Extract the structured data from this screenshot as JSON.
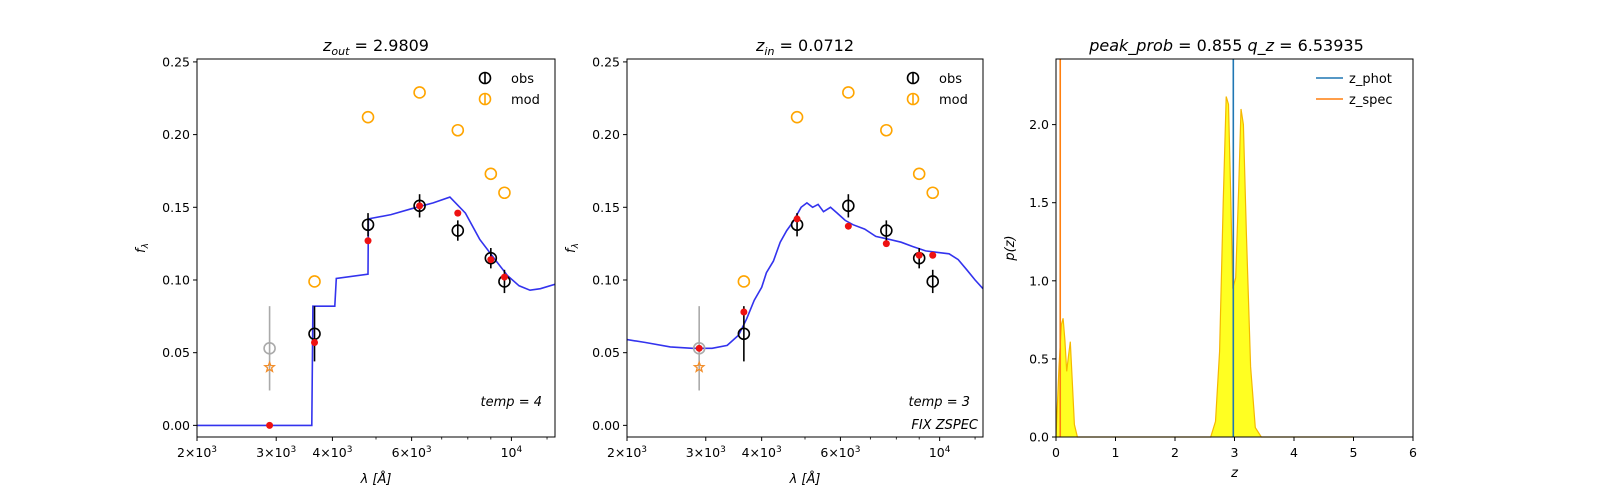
{
  "chart_data": [
    {
      "type": "scatter",
      "title_var": "z",
      "title_sub": "out",
      "title_value": "2.9809",
      "ylabel_var": "f",
      "ylabel_sub": "λ",
      "xlabel": "λ [Å]",
      "xscale": "log",
      "xlim": [
        2000,
        12500
      ],
      "ylim": [
        -0.008,
        0.252
      ],
      "xticks": [
        {
          "value": 2000,
          "base": "2×10",
          "exp": "3"
        },
        {
          "value": 3000,
          "base": "3×10",
          "exp": "3"
        },
        {
          "value": 4000,
          "base": "4×10",
          "exp": "3"
        },
        {
          "value": 6000,
          "base": "6×10",
          "exp": "3"
        },
        {
          "value": 10000,
          "base": "10",
          "exp": "4"
        }
      ],
      "yticks": [
        "0.00",
        "0.05",
        "0.10",
        "0.15",
        "0.20",
        "0.25"
      ],
      "legend": {
        "position": "top-right",
        "entries": [
          {
            "label": "obs",
            "color": "#000000"
          },
          {
            "label": "mod",
            "color": "#FFA500"
          }
        ]
      },
      "annotation": "temp = 4",
      "annotation2": "",
      "obs": [
        {
          "x": 2900,
          "y": 0.053,
          "err": 0.029,
          "color": "#AAAAAA"
        },
        {
          "x": 3650,
          "y": 0.063,
          "err": 0.019,
          "color": "#000000"
        },
        {
          "x": 4800,
          "y": 0.138,
          "err": 0.008,
          "color": "#000000"
        },
        {
          "x": 6250,
          "y": 0.151,
          "err": 0.008,
          "color": "#000000"
        },
        {
          "x": 7600,
          "y": 0.134,
          "err": 0.007,
          "color": "#000000"
        },
        {
          "x": 9000,
          "y": 0.115,
          "err": 0.007,
          "color": "#000000"
        },
        {
          "x": 9650,
          "y": 0.099,
          "err": 0.008,
          "color": "#000000"
        }
      ],
      "mod": [
        {
          "x": 3650,
          "y": 0.099
        },
        {
          "x": 4800,
          "y": 0.212
        },
        {
          "x": 6250,
          "y": 0.229
        },
        {
          "x": 7600,
          "y": 0.203
        },
        {
          "x": 9000,
          "y": 0.173
        },
        {
          "x": 9650,
          "y": 0.16
        }
      ],
      "star": {
        "x": 2900,
        "y": 0.04
      },
      "fitted": [
        {
          "x": 2900,
          "y": 0.0
        },
        {
          "x": 3650,
          "y": 0.057
        },
        {
          "x": 4800,
          "y": 0.127
        },
        {
          "x": 6250,
          "y": 0.151
        },
        {
          "x": 7600,
          "y": 0.146
        },
        {
          "x": 9000,
          "y": 0.114
        },
        {
          "x": 9650,
          "y": 0.102
        }
      ],
      "sed": [
        [
          2000,
          0.0
        ],
        [
          3600,
          0.0
        ],
        [
          3620,
          0.082
        ],
        [
          4050,
          0.082
        ],
        [
          4080,
          0.101
        ],
        [
          4800,
          0.104
        ],
        [
          4810,
          0.142
        ],
        [
          5400,
          0.145
        ],
        [
          6000,
          0.149
        ],
        [
          6700,
          0.153
        ],
        [
          7300,
          0.157
        ],
        [
          7900,
          0.146
        ],
        [
          8500,
          0.128
        ],
        [
          9200,
          0.114
        ],
        [
          9800,
          0.103
        ],
        [
          10400,
          0.096
        ],
        [
          11000,
          0.093
        ],
        [
          11600,
          0.094
        ],
        [
          12500,
          0.097
        ]
      ]
    },
    {
      "type": "scatter",
      "title_var": "z",
      "title_sub": "in",
      "title_value": "0.0712",
      "ylabel_var": "f",
      "ylabel_sub": "λ",
      "xlabel": "λ [Å]",
      "xscale": "log",
      "xlim": [
        2000,
        12500
      ],
      "ylim": [
        -0.008,
        0.252
      ],
      "xticks": [
        {
          "value": 2000,
          "base": "2×10",
          "exp": "3"
        },
        {
          "value": 3000,
          "base": "3×10",
          "exp": "3"
        },
        {
          "value": 4000,
          "base": "4×10",
          "exp": "3"
        },
        {
          "value": 6000,
          "base": "6×10",
          "exp": "3"
        },
        {
          "value": 10000,
          "base": "10",
          "exp": "4"
        }
      ],
      "yticks": [
        "0.00",
        "0.05",
        "0.10",
        "0.15",
        "0.20",
        "0.25"
      ],
      "legend": {
        "position": "top-right",
        "entries": [
          {
            "label": "obs",
            "color": "#000000"
          },
          {
            "label": "mod",
            "color": "#FFA500"
          }
        ]
      },
      "annotation": "temp = 3",
      "annotation2": "FIX ZSPEC",
      "obs": [
        {
          "x": 2900,
          "y": 0.053,
          "err": 0.029,
          "color": "#AAAAAA"
        },
        {
          "x": 3650,
          "y": 0.063,
          "err": 0.019,
          "color": "#000000"
        },
        {
          "x": 4800,
          "y": 0.138,
          "err": 0.008,
          "color": "#000000"
        },
        {
          "x": 6250,
          "y": 0.151,
          "err": 0.008,
          "color": "#000000"
        },
        {
          "x": 7600,
          "y": 0.134,
          "err": 0.007,
          "color": "#000000"
        },
        {
          "x": 9000,
          "y": 0.115,
          "err": 0.007,
          "color": "#000000"
        },
        {
          "x": 9650,
          "y": 0.099,
          "err": 0.008,
          "color": "#000000"
        }
      ],
      "mod": [
        {
          "x": 3650,
          "y": 0.099
        },
        {
          "x": 4800,
          "y": 0.212
        },
        {
          "x": 6250,
          "y": 0.229
        },
        {
          "x": 7600,
          "y": 0.203
        },
        {
          "x": 9000,
          "y": 0.173
        },
        {
          "x": 9650,
          "y": 0.16
        }
      ],
      "star": {
        "x": 2900,
        "y": 0.04
      },
      "fitted": [
        {
          "x": 2900,
          "y": 0.053
        },
        {
          "x": 3650,
          "y": 0.078
        },
        {
          "x": 4800,
          "y": 0.142
        },
        {
          "x": 6250,
          "y": 0.137
        },
        {
          "x": 7600,
          "y": 0.125
        },
        {
          "x": 9000,
          "y": 0.117
        },
        {
          "x": 9650,
          "y": 0.117
        }
      ],
      "sed": [
        [
          2000,
          0.059
        ],
        [
          2200,
          0.057
        ],
        [
          2500,
          0.054
        ],
        [
          2800,
          0.053
        ],
        [
          3100,
          0.053
        ],
        [
          3350,
          0.055
        ],
        [
          3550,
          0.062
        ],
        [
          3700,
          0.073
        ],
        [
          3850,
          0.086
        ],
        [
          4000,
          0.095
        ],
        [
          4100,
          0.105
        ],
        [
          4250,
          0.113
        ],
        [
          4400,
          0.126
        ],
        [
          4550,
          0.134
        ],
        [
          4700,
          0.14
        ],
        [
          4900,
          0.15
        ],
        [
          5050,
          0.153
        ],
        [
          5200,
          0.15
        ],
        [
          5350,
          0.152
        ],
        [
          5500,
          0.147
        ],
        [
          5700,
          0.15
        ],
        [
          5900,
          0.146
        ],
        [
          6150,
          0.141
        ],
        [
          6400,
          0.138
        ],
        [
          6800,
          0.135
        ],
        [
          7200,
          0.13
        ],
        [
          7700,
          0.128
        ],
        [
          8200,
          0.126
        ],
        [
          8700,
          0.123
        ],
        [
          9300,
          0.12
        ],
        [
          9900,
          0.119
        ],
        [
          10500,
          0.118
        ],
        [
          11000,
          0.114
        ],
        [
          11500,
          0.107
        ],
        [
          12000,
          0.1
        ],
        [
          12500,
          0.094
        ]
      ]
    },
    {
      "type": "area",
      "title_left_var": "peak_prob",
      "title_left_value": "0.855",
      "title_right_var": "q_z",
      "title_right_value": "6.53935",
      "xlabel": "z",
      "ylabel": "p(z)",
      "xlim": [
        0,
        6
      ],
      "ylim": [
        0,
        2.42
      ],
      "xticks": [
        "0",
        "1",
        "2",
        "3",
        "4",
        "5",
        "6"
      ],
      "yticks": [
        "0.0",
        "0.5",
        "1.0",
        "1.5",
        "2.0"
      ],
      "legend": {
        "position": "top-right",
        "entries": [
          {
            "label": "z_phot",
            "color": "#1F77B4"
          },
          {
            "label": "z_spec",
            "color": "#FF7F0E"
          }
        ]
      },
      "z_phot": 2.98,
      "z_spec": 0.0712,
      "pdf": [
        [
          0.0,
          0.0
        ],
        [
          0.05,
          0.45
        ],
        [
          0.09,
          0.72
        ],
        [
          0.12,
          0.76
        ],
        [
          0.15,
          0.62
        ],
        [
          0.18,
          0.42
        ],
        [
          0.21,
          0.52
        ],
        [
          0.24,
          0.61
        ],
        [
          0.27,
          0.38
        ],
        [
          0.31,
          0.08
        ],
        [
          0.36,
          0.0
        ],
        [
          2.6,
          0.0
        ],
        [
          2.68,
          0.1
        ],
        [
          2.75,
          0.55
        ],
        [
          2.81,
          1.5
        ],
        [
          2.86,
          2.18
        ],
        [
          2.9,
          2.13
        ],
        [
          2.94,
          1.5
        ],
        [
          2.97,
          0.95
        ],
        [
          3.02,
          1.02
        ],
        [
          3.07,
          1.6
        ],
        [
          3.11,
          2.1
        ],
        [
          3.15,
          2.0
        ],
        [
          3.2,
          1.3
        ],
        [
          3.27,
          0.45
        ],
        [
          3.35,
          0.06
        ],
        [
          3.45,
          0.0
        ],
        [
          5.0,
          0.0
        ]
      ]
    }
  ]
}
